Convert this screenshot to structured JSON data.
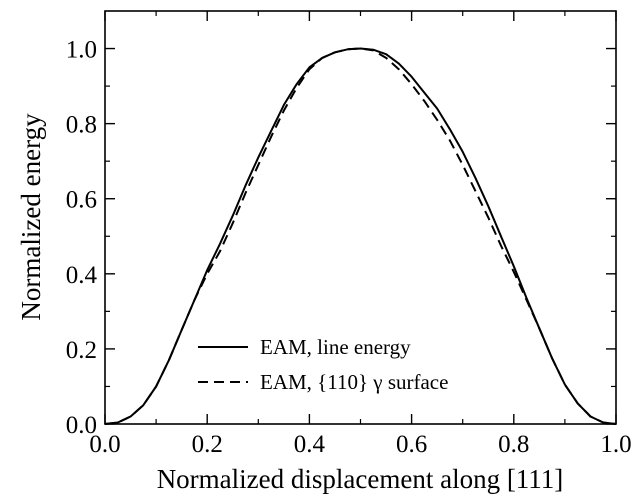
{
  "chart_data": {
    "type": "line",
    "xlabel": "Normalized displacement along [111]",
    "ylabel": "Normalized energy",
    "xlim": [
      0.0,
      1.0
    ],
    "ylim": [
      0.0,
      1.1
    ],
    "x_ticks": [
      "0.0",
      "0.2",
      "0.4",
      "0.6",
      "0.8",
      "1.0"
    ],
    "y_ticks": [
      "0.0",
      "0.2",
      "0.4",
      "0.6",
      "0.8",
      "1.0"
    ],
    "grid": false,
    "legend_position": "lower-center",
    "series": [
      {
        "name": "EAM, line energy",
        "style": "solid",
        "color": "#000000",
        "x": [
          0.0,
          0.025,
          0.05,
          0.075,
          0.1,
          0.125,
          0.15,
          0.175,
          0.2,
          0.225,
          0.25,
          0.275,
          0.3,
          0.325,
          0.35,
          0.375,
          0.4,
          0.425,
          0.45,
          0.475,
          0.5,
          0.525,
          0.55,
          0.575,
          0.6,
          0.625,
          0.65,
          0.675,
          0.7,
          0.725,
          0.75,
          0.775,
          0.8,
          0.825,
          0.85,
          0.875,
          0.9,
          0.925,
          0.95,
          0.975,
          1.0
        ],
        "y": [
          0.0,
          0.004,
          0.02,
          0.05,
          0.1,
          0.17,
          0.25,
          0.33,
          0.41,
          0.48,
          0.555,
          0.635,
          0.71,
          0.78,
          0.85,
          0.905,
          0.95,
          0.975,
          0.99,
          0.998,
          1.0,
          0.997,
          0.985,
          0.96,
          0.925,
          0.882,
          0.84,
          0.785,
          0.725,
          0.655,
          0.58,
          0.5,
          0.42,
          0.335,
          0.255,
          0.175,
          0.105,
          0.055,
          0.02,
          0.004,
          0.0
        ]
      },
      {
        "name": "EAM, {110} γ surface",
        "style": "dashed",
        "color": "#000000",
        "x": [
          0.0,
          0.025,
          0.05,
          0.075,
          0.1,
          0.125,
          0.15,
          0.175,
          0.2,
          0.225,
          0.25,
          0.275,
          0.3,
          0.325,
          0.35,
          0.375,
          0.4,
          0.425,
          0.45,
          0.475,
          0.5,
          0.525,
          0.55,
          0.575,
          0.6,
          0.625,
          0.65,
          0.675,
          0.7,
          0.725,
          0.75,
          0.775,
          0.8,
          0.825,
          0.85,
          0.875,
          0.9,
          0.925,
          0.95,
          0.975,
          1.0
        ],
        "y": [
          0.0,
          0.004,
          0.02,
          0.05,
          0.1,
          0.17,
          0.25,
          0.33,
          0.4,
          0.46,
          0.535,
          0.615,
          0.69,
          0.765,
          0.835,
          0.895,
          0.945,
          0.975,
          0.99,
          0.998,
          1.0,
          0.995,
          0.975,
          0.945,
          0.905,
          0.86,
          0.81,
          0.755,
          0.69,
          0.62,
          0.55,
          0.475,
          0.405,
          0.33,
          0.255,
          0.175,
          0.105,
          0.055,
          0.02,
          0.004,
          0.0
        ]
      }
    ]
  }
}
